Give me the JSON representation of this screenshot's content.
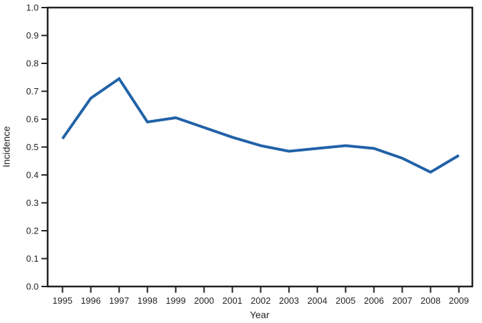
{
  "chart_data": {
    "type": "line",
    "title": "",
    "xlabel": "Year",
    "ylabel": "Incidence",
    "x": [
      1995,
      1996,
      1997,
      1998,
      1999,
      2000,
      2001,
      2002,
      2003,
      2004,
      2005,
      2006,
      2007,
      2008,
      2009
    ],
    "series": [
      {
        "name": "Incidence",
        "values": [
          0.53,
          0.675,
          0.745,
          0.59,
          0.605,
          0.57,
          0.535,
          0.505,
          0.485,
          0.495,
          0.505,
          0.495,
          0.46,
          0.41,
          0.47
        ]
      }
    ],
    "ylim": [
      0.0,
      1.0
    ],
    "ytick_step": 0.1,
    "ytick_decimals": 1,
    "grid": false,
    "legend": "none",
    "line_color": "#2162a8",
    "axis_color": "#231f20",
    "background_color": "#ffffff"
  }
}
